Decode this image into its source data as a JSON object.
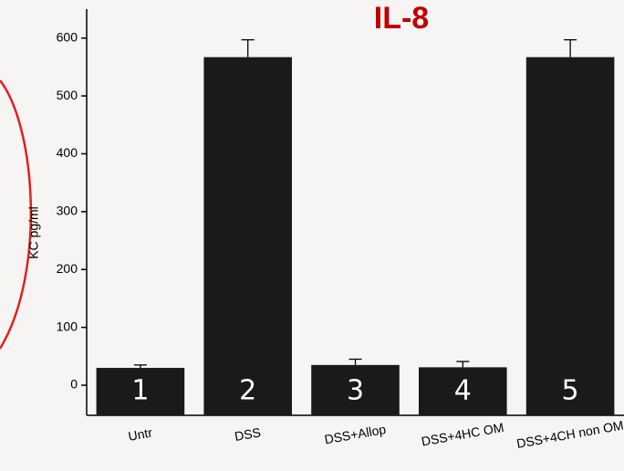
{
  "chart_data": {
    "type": "bar",
    "title": "IL-8",
    "y_label": "KC pg/ml",
    "categories": [
      "Untr",
      "DSS",
      "DSS+Allop",
      "DSS+4HC OM",
      "DSS+4CH non OM"
    ],
    "values": [
      30,
      567,
      35,
      31,
      567
    ],
    "errors": [
      5,
      30,
      10,
      10,
      30
    ],
    "bar_labels": [
      "1",
      "2",
      "3",
      "4",
      "5"
    ],
    "color": "#1a1a1a",
    "ylim": [
      -52,
      650
    ],
    "yticks": [
      0,
      100,
      200,
      300,
      400,
      500,
      600
    ]
  }
}
